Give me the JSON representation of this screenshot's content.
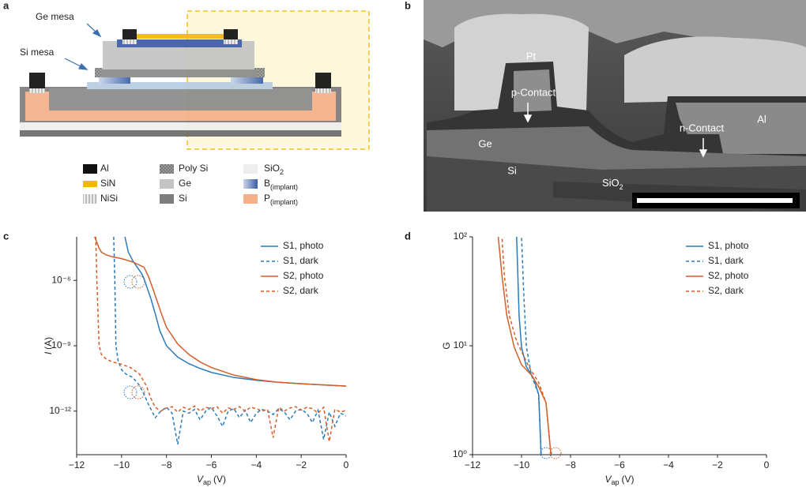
{
  "panel_a": {
    "letter": "a",
    "ge_mesa": "Ge mesa",
    "si_mesa": "Si mesa",
    "legend": [
      {
        "label": "Al"
      },
      {
        "label": "SiN"
      },
      {
        "label": "NiSi"
      },
      {
        "label": "Poly Si"
      },
      {
        "label": "Ge"
      },
      {
        "label": "Si"
      },
      {
        "label": "SiO",
        "sub": "2"
      },
      {
        "label": "B",
        "sub": "(implant)"
      },
      {
        "label": "P",
        "sub": "(implant)"
      }
    ]
  },
  "panel_b": {
    "letter": "b",
    "pt": "Pt",
    "p_contact": "p-Contact",
    "al": "Al",
    "n_contact": "n-Contact",
    "ge": "Ge",
    "si": "Si",
    "sio2": {
      "label": "SiO",
      "sub": "2"
    }
  },
  "chart_data": [
    {
      "type": "line",
      "label": "c",
      "log_y": true,
      "x_label": {
        "symbol": "V",
        "sub": "ap",
        "unit": "(V)"
      },
      "y_label": {
        "symbol": "I",
        "unit": "(A)"
      },
      "xlim": [
        -12,
        0
      ],
      "ylim": [
        1e-14,
        0.0001
      ],
      "xticks": [
        {
          "value": -12,
          "label": "−12"
        },
        {
          "value": -10,
          "label": "−10"
        },
        {
          "value": -8,
          "label": "−8"
        },
        {
          "value": -6,
          "label": "−6"
        },
        {
          "value": -4,
          "label": "−4"
        },
        {
          "value": -2,
          "label": "−2"
        },
        0
      ],
      "yticks": [
        {
          "value": 1e-06,
          "label": "10⁻⁶"
        },
        {
          "value": 1e-09,
          "label": "10⁻⁹"
        },
        {
          "value": 1e-12,
          "label": "10⁻¹²"
        }
      ],
      "series": [
        {
          "name": "S1, photo",
          "color": "#2b7bba",
          "dash": false,
          "x": [
            -9.85,
            -9.7,
            -9.5,
            -9.3,
            -9.1,
            -9.0,
            -8.9,
            -8.7,
            -8.5,
            -8.3,
            -8.0,
            -7.5,
            -7,
            -6.5,
            -6,
            -5,
            -4,
            -3,
            -2,
            -1,
            0
          ],
          "values": [
            0.0001,
            2e-05,
            8e-06,
            4e-06,
            2e-06,
            1.2e-06,
            6e-07,
            1.5e-07,
            3e-08,
            5e-09,
            1e-09,
            3e-10,
            1.5e-10,
            9e-11,
            6e-11,
            3.5e-11,
            2.6e-11,
            2.1e-11,
            1.8e-11,
            1.6e-11,
            1.4e-11
          ]
        },
        {
          "name": "S1, dark",
          "color": "#2b7bba",
          "dash": true,
          "x": [
            -10.35,
            -10.3,
            -10.25,
            -10.15,
            -10.0,
            -9.8,
            -9.5,
            -9.2,
            -9.0,
            -8.8,
            -8.5,
            -8.25,
            -8,
            -7.75,
            -7.5,
            -7.25,
            -7,
            -6.75,
            -6.5,
            -6.25,
            -6,
            -5.75,
            -5.5,
            -5.25,
            -5,
            -4.75,
            -4.5,
            -4.25,
            -4,
            -3.75,
            -3.5,
            -3.25,
            -3,
            -2.75,
            -2.5,
            -2.25,
            -2,
            -1.75,
            -1.5,
            -1.25,
            -1,
            -0.75,
            -0.5,
            -0.25,
            0
          ],
          "values": [
            0.0001,
            1e-06,
            1e-09,
            2e-10,
            8e-11,
            5e-11,
            3.5e-11,
            1.5e-11,
            6e-12,
            2e-12,
            5e-13,
            1e-12,
            1.5e-12,
            8e-13,
            3e-14,
            1e-12,
            8e-13,
            1.2e-12,
            4e-13,
            1e-12,
            1.5e-12,
            6e-13,
            2e-13,
            1e-12,
            1.3e-12,
            5e-13,
            1.1e-12,
            3e-13,
            8e-13,
            1.2e-12,
            1e-12,
            7e-13,
            1.3e-12,
            9e-13,
            4e-13,
            1e-12,
            1.2e-12,
            8e-13,
            3e-13,
            1.1e-12,
            5e-14,
            9e-13,
            2e-13,
            8e-13,
            6e-13
          ]
        },
        {
          "name": "S2, photo",
          "color": "#d45f2a",
          "dash": false,
          "x": [
            -11.2,
            -11.0,
            -10.9,
            -10.7,
            -10.4,
            -10,
            -9.5,
            -9,
            -8.8,
            -8.6,
            -8.4,
            -8.2,
            -8,
            -7.5,
            -7,
            -6.5,
            -6,
            -5,
            -4,
            -3,
            -2,
            -1,
            0
          ],
          "values": [
            0.0001,
            3e-05,
            2e-05,
            1.5e-05,
            1.2e-05,
            1e-05,
            7e-06,
            4e-06,
            1.5e-06,
            4e-07,
            1e-07,
            2.5e-08,
            7e-09,
            1.2e-09,
            4e-10,
            1.8e-10,
            1e-10,
            4.5e-11,
            2.8e-11,
            2.1e-11,
            1.8e-11,
            1.6e-11,
            1.4e-11
          ]
        },
        {
          "name": "S2, dark",
          "color": "#d45f2a",
          "dash": true,
          "x": [
            -11.15,
            -11.1,
            -11.0,
            -10.9,
            -10.7,
            -10.4,
            -10.0,
            -9.6,
            -9.2,
            -8.9,
            -8.7,
            -8.5,
            -8.25,
            -8,
            -7.75,
            -7.5,
            -7.25,
            -7,
            -6.75,
            -6.5,
            -6.25,
            -6,
            -5.75,
            -5.5,
            -5.25,
            -5,
            -4.75,
            -4.5,
            -4.25,
            -4,
            -3.75,
            -3.5,
            -3.25,
            -3,
            -2.75,
            -2.5,
            -2.25,
            -2,
            -1.75,
            -1.5,
            -1.25,
            -1,
            -0.75,
            -0.5,
            -0.25,
            0
          ],
          "values": [
            0.0001,
            1e-06,
            1e-09,
            4e-10,
            2.5e-10,
            1.8e-10,
            1.4e-10,
            1e-10,
            5e-11,
            1.5e-11,
            4e-12,
            1.5e-12,
            1e-12,
            1.4e-12,
            1.6e-12,
            9e-13,
            1.5e-12,
            1.2e-12,
            1.7e-12,
            1e-12,
            1.5e-12,
            1.3e-12,
            1.6e-12,
            8e-13,
            1.4e-12,
            1.2e-12,
            1.6e-12,
            1e-12,
            1.5e-12,
            1.3e-12,
            1e-12,
            1.2e-12,
            6e-14,
            1.5e-12,
            1e-12,
            1.4e-12,
            1.6e-12,
            1.1e-12,
            1.5e-12,
            1.3e-12,
            8e-13,
            1.5e-12,
            4e-14,
            1.2e-12,
            9e-13,
            1.1e-12
          ]
        }
      ]
    },
    {
      "type": "line",
      "label": "d",
      "log_y": true,
      "x_label": {
        "symbol": "V",
        "sub": "ap",
        "unit": "(V)"
      },
      "y_label": {
        "symbol": "G"
      },
      "xlim": [
        -12,
        0
      ],
      "ylim": [
        1,
        100
      ],
      "xticks": [
        {
          "value": -12,
          "label": "−12"
        },
        {
          "value": -10,
          "label": "−10"
        },
        {
          "value": -8,
          "label": "−8"
        },
        {
          "value": -6,
          "label": "−6"
        },
        {
          "value": -4,
          "label": "−4"
        },
        {
          "value": -2,
          "label": "−2"
        },
        0
      ],
      "yticks": [
        {
          "value": 1,
          "label": "10⁰"
        },
        {
          "value": 10,
          "label": "10¹"
        },
        {
          "value": 100,
          "label": "10²"
        }
      ],
      "series": [
        {
          "name": "S1, photo",
          "color": "#2b7bba",
          "dash": false,
          "x": [
            -9.2,
            -9.3,
            -9.5,
            -9.8,
            -10.0,
            -10.1,
            -10.15,
            -10.2
          ],
          "values": [
            1,
            3.57,
            5.0,
            6.4,
            9.7,
            19,
            44,
            100
          ]
        },
        {
          "name": "S1, dark",
          "color": "#2b7bba",
          "dash": true,
          "x": [
            -9.2,
            -9.3,
            -9.6,
            -9.8,
            -9.9,
            -9.95,
            -10.0
          ],
          "values": [
            1,
            3.57,
            5.4,
            9.7,
            27,
            52,
            100
          ]
        },
        {
          "name": "S2, photo",
          "color": "#d45f2a",
          "dash": false,
          "x": [
            -8.8,
            -9.0,
            -9.3,
            -9.6,
            -10.0,
            -10.3,
            -10.6,
            -10.8,
            -10.95
          ],
          "values": [
            1,
            3.0,
            4.2,
            5.4,
            6.7,
            9.7,
            19,
            44,
            100
          ]
        },
        {
          "name": "S2, dark",
          "color": "#d45f2a",
          "dash": true,
          "x": [
            -8.8,
            -9.0,
            -9.3,
            -9.7,
            -10.2,
            -10.5,
            -10.7,
            -10.8
          ],
          "values": [
            1,
            3.0,
            4.6,
            6.4,
            11,
            19,
            44,
            100
          ]
        }
      ]
    }
  ]
}
